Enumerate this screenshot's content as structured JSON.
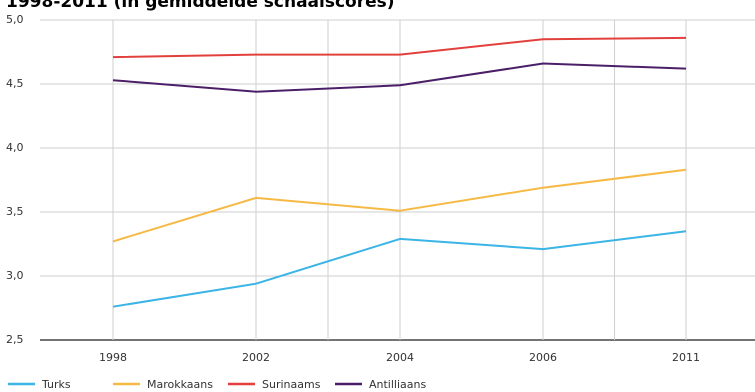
{
  "chart_data": {
    "type": "line",
    "title": "1998-2011 (in gemiddelde schaalscores)",
    "categories": [
      "1998",
      "2002",
      "2004",
      "2006",
      "2011"
    ],
    "x_extra_grid_positions": [
      1.5,
      3.5
    ],
    "ylim": [
      2.5,
      5.0
    ],
    "yticks": [
      2.5,
      3.0,
      3.5,
      4.0,
      4.5,
      5.0
    ],
    "ytick_labels": [
      "2,5",
      "3,0",
      "3,5",
      "4,0",
      "4,5",
      "5,0"
    ],
    "grid": true,
    "legend_position": "bottom",
    "series": [
      {
        "name": "Turks",
        "color": "#3bb4e6",
        "values": [
          2.76,
          2.94,
          3.29,
          3.21,
          3.35
        ]
      },
      {
        "name": "Marokkaans",
        "color": "#f5b944",
        "values": [
          3.27,
          3.61,
          3.51,
          3.69,
          3.83
        ]
      },
      {
        "name": "Surinaams",
        "color": "#e2403c",
        "values": [
          4.71,
          4.73,
          4.73,
          4.85,
          4.86
        ]
      },
      {
        "name": "Antilliaans",
        "color": "#4b1f68",
        "values": [
          4.53,
          4.44,
          4.49,
          4.66,
          4.62
        ]
      }
    ]
  }
}
